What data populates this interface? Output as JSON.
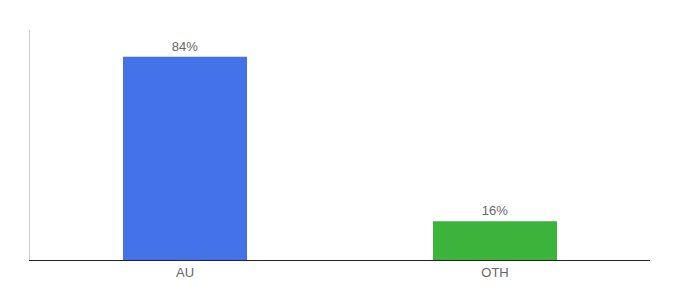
{
  "chart_data": {
    "type": "bar",
    "categories": [
      "AU",
      "OTH"
    ],
    "values": [
      84,
      16
    ],
    "value_labels": [
      "84%",
      "16%"
    ],
    "colors": [
      "#4472e8",
      "#3cb43c"
    ],
    "ylim": [
      0,
      95
    ],
    "grid": false,
    "data_labels": true,
    "tick_labels": "x"
  }
}
